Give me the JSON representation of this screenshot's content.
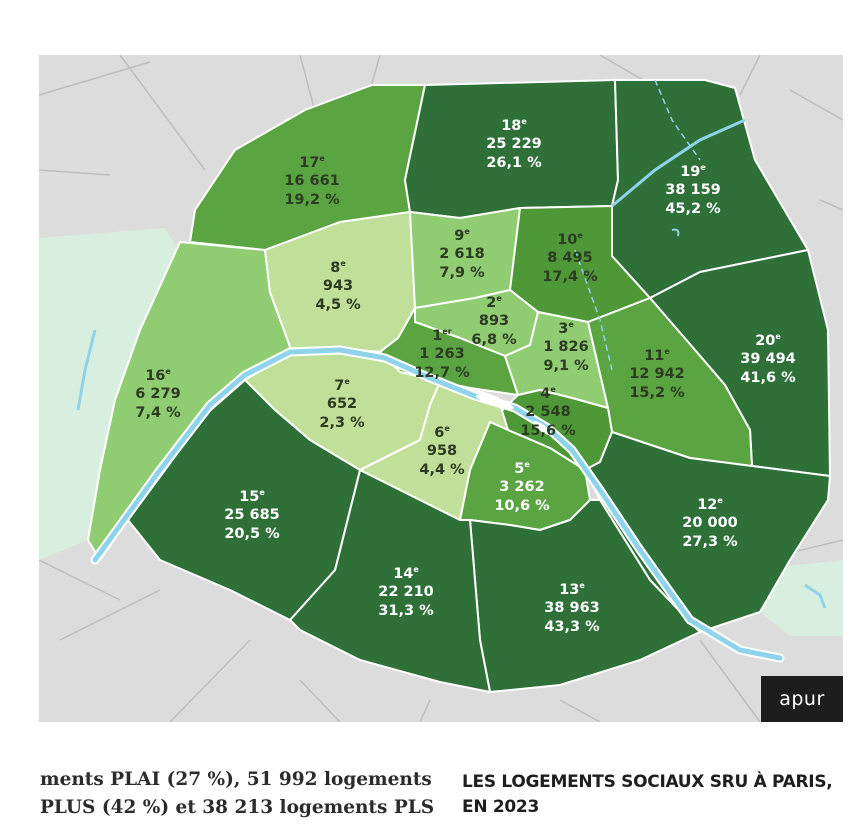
{
  "map": {
    "colors": {
      "background": "#dcdcdc",
      "streets": "#bdbdbd",
      "borders": "#ffffff",
      "river": "#8fd3ea",
      "woods": "#d8efdf",
      "level1": "#c0df98",
      "level2": "#8fcc72",
      "level3": "#5aa541",
      "level4": "#2e7038"
    },
    "arrondissements": [
      {
        "id": "a1",
        "num": "1",
        "sup": "er",
        "count": "1 263",
        "pct": "12,7 %",
        "fill": "#5aa541",
        "dark": true
      },
      {
        "id": "a2",
        "num": "2",
        "sup": "e",
        "count": "893",
        "pct": "6,8 %",
        "fill": "#8fcc72",
        "dark": true
      },
      {
        "id": "a3",
        "num": "3",
        "sup": "e",
        "count": "1 826",
        "pct": "9,1 %",
        "fill": "#8fcc72",
        "dark": true
      },
      {
        "id": "a4",
        "num": "4",
        "sup": "e",
        "count": "2 548",
        "pct": "15,6 %",
        "fill": "#4e9838",
        "dark": true
      },
      {
        "id": "a5",
        "num": "5",
        "sup": "e",
        "count": "3 262",
        "pct": "10,6 %",
        "fill": "#5aa541",
        "dark": false
      },
      {
        "id": "a6",
        "num": "6",
        "sup": "e",
        "count": "958",
        "pct": "4,4 %",
        "fill": "#c0df98",
        "dark": true
      },
      {
        "id": "a7",
        "num": "7",
        "sup": "e",
        "count": "652",
        "pct": "2,3 %",
        "fill": "#c0df98",
        "dark": true
      },
      {
        "id": "a8",
        "num": "8",
        "sup": "e",
        "count": "943",
        "pct": "4,5 %",
        "fill": "#c0df98",
        "dark": true
      },
      {
        "id": "a9",
        "num": "9",
        "sup": "e",
        "count": "2 618",
        "pct": "7,9 %",
        "fill": "#8fcc72",
        "dark": true
      },
      {
        "id": "a10",
        "num": "10",
        "sup": "e",
        "count": "8 495",
        "pct": "17,4 %",
        "fill": "#4e9838",
        "dark": true
      },
      {
        "id": "a11",
        "num": "11",
        "sup": "e",
        "count": "12 942",
        "pct": "15,2 %",
        "fill": "#5aa541",
        "dark": true
      },
      {
        "id": "a12",
        "num": "12",
        "sup": "e",
        "count": "20 000",
        "pct": "27,3 %",
        "fill": "#2e7038",
        "dark": false
      },
      {
        "id": "a13",
        "num": "13",
        "sup": "e",
        "count": "38 963",
        "pct": "43,3 %",
        "fill": "#2e7038",
        "dark": false
      },
      {
        "id": "a14",
        "num": "14",
        "sup": "e",
        "count": "22 210",
        "pct": "31,3 %",
        "fill": "#2e7038",
        "dark": false
      },
      {
        "id": "a15",
        "num": "15",
        "sup": "e",
        "count": "25 685",
        "pct": "20,5 %",
        "fill": "#2e7038",
        "dark": false
      },
      {
        "id": "a16",
        "num": "16",
        "sup": "e",
        "count": "6 279",
        "pct": "7,4 %",
        "fill": "#8fcc72",
        "dark": true
      },
      {
        "id": "a17",
        "num": "17",
        "sup": "e",
        "count": "16 661",
        "pct": "19,2 %",
        "fill": "#5aa541",
        "dark": true
      },
      {
        "id": "a18",
        "num": "18",
        "sup": "e",
        "count": "25 229",
        "pct": "26,1 %",
        "fill": "#2e7038",
        "dark": false
      },
      {
        "id": "a19",
        "num": "19",
        "sup": "e",
        "count": "38 159",
        "pct": "45,2 %",
        "fill": "#2e7038",
        "dark": false
      },
      {
        "id": "a20",
        "num": "20",
        "sup": "e",
        "count": "39 494",
        "pct": "41,6 %",
        "fill": "#2e7038",
        "dark": false
      }
    ]
  },
  "logo": {
    "text": "apur"
  },
  "body_text": {
    "line1": "ments PLAI (27 %), 51 992 logements",
    "line2": "PLUS (42 %) et 38 213 logements PLS"
  },
  "caption": {
    "line1": "LES LOGEMENTS SOCIAUX SRU À PARIS,",
    "line2": "EN 2023"
  }
}
